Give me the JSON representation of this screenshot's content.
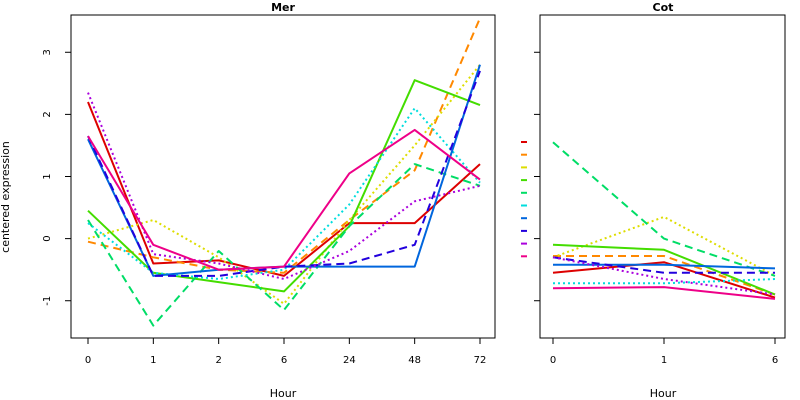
{
  "chart_data": [
    {
      "type": "line",
      "title": "Mer",
      "xlabel": "Hour",
      "ylabel": "centered expression",
      "categories": [
        "0",
        "1",
        "2",
        "6",
        "24",
        "48",
        "72"
      ],
      "yticks": [
        -1,
        0,
        1,
        2,
        3
      ],
      "ylim": [
        -1.6,
        3.6
      ],
      "grid": false,
      "series": [
        {
          "color": "#dd0000",
          "dash": "solid",
          "values": [
            2.2,
            -0.4,
            -0.35,
            -0.6,
            0.25,
            0.25,
            1.2
          ]
        },
        {
          "color": "#ff8800",
          "dash": "dashed",
          "values": [
            -0.05,
            -0.3,
            -0.5,
            -0.55,
            0.3,
            1.1,
            3.55
          ]
        },
        {
          "color": "#dddd00",
          "dash": "dotted",
          "values": [
            0.0,
            0.3,
            -0.3,
            -1.05,
            0.3,
            1.5,
            2.8
          ]
        },
        {
          "color": "#44dd00",
          "dash": "solid",
          "values": [
            0.45,
            -0.55,
            -0.7,
            -0.85,
            0.2,
            2.55,
            2.15
          ]
        },
        {
          "color": "#00dd66",
          "dash": "dashed",
          "values": [
            0.3,
            -1.4,
            -0.2,
            -1.15,
            0.2,
            1.2,
            0.85
          ]
        },
        {
          "color": "#00dddd",
          "dash": "dotted",
          "values": [
            0.25,
            -0.55,
            -0.65,
            -0.5,
            0.55,
            2.1,
            0.9
          ]
        },
        {
          "color": "#0066dd",
          "dash": "solid",
          "values": [
            1.6,
            -0.6,
            -0.5,
            -0.45,
            -0.45,
            -0.45,
            2.8
          ]
        },
        {
          "color": "#2200dd",
          "dash": "dashed",
          "values": [
            1.65,
            -0.6,
            -0.6,
            -0.45,
            -0.4,
            -0.1,
            2.7
          ]
        },
        {
          "color": "#aa00dd",
          "dash": "dotted",
          "values": [
            2.35,
            -0.25,
            -0.4,
            -0.65,
            -0.2,
            0.6,
            0.85
          ]
        },
        {
          "color": "#ee0088",
          "dash": "solid",
          "values": [
            1.65,
            -0.1,
            -0.5,
            -0.45,
            1.05,
            1.75,
            0.95
          ]
        }
      ]
    },
    {
      "type": "line",
      "title": "Cot",
      "xlabel": "Hour",
      "ylabel": "",
      "categories": [
        "0",
        "1",
        "6"
      ],
      "ylim": [
        -1.6,
        3.6
      ],
      "grid": false,
      "series": [
        {
          "color": "#dd0000",
          "dash": "solid",
          "values": [
            -0.55,
            -0.38,
            -0.95
          ]
        },
        {
          "color": "#ff8800",
          "dash": "dashed",
          "values": [
            -0.28,
            -0.28,
            -0.9
          ]
        },
        {
          "color": "#dddd00",
          "dash": "dotted",
          "values": [
            -0.3,
            0.35,
            -0.6
          ]
        },
        {
          "color": "#44dd00",
          "dash": "solid",
          "values": [
            -0.1,
            -0.18,
            -0.9
          ]
        },
        {
          "color": "#00dd66",
          "dash": "dashed",
          "values": [
            1.55,
            0.0,
            -0.6
          ]
        },
        {
          "color": "#00dddd",
          "dash": "dotted",
          "values": [
            -0.72,
            -0.72,
            -0.65
          ]
        },
        {
          "color": "#0066dd",
          "dash": "solid",
          "values": [
            -0.42,
            -0.42,
            -0.48
          ]
        },
        {
          "color": "#2200dd",
          "dash": "dashed",
          "values": [
            -0.3,
            -0.55,
            -0.55
          ]
        },
        {
          "color": "#aa00dd",
          "dash": "dotted",
          "values": [
            -0.3,
            -0.65,
            -0.9
          ]
        },
        {
          "color": "#ee0088",
          "dash": "solid",
          "values": [
            -0.8,
            -0.78,
            -0.97
          ]
        }
      ]
    }
  ]
}
